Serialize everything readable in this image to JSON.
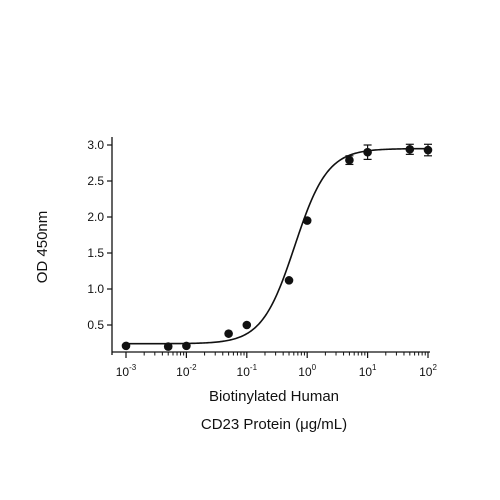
{
  "chart_data": {
    "type": "scatter",
    "title": "",
    "xlabel_lines": [
      "Biotinylated Human",
      "CD23 Protein (μg/mL)"
    ],
    "ylabel": "OD 450nm",
    "x_scale": "log",
    "xlim": [
      0.001,
      100
    ],
    "ylim": [
      0.2,
      3.1
    ],
    "y_ticks": [
      {
        "value": 0.5,
        "label": "0.5"
      },
      {
        "value": 1.0,
        "label": "1.0"
      },
      {
        "value": 1.5,
        "label": "1.5"
      },
      {
        "value": 2.0,
        "label": "2.0"
      },
      {
        "value": 2.5,
        "label": "2.5"
      },
      {
        "value": 3.0,
        "label": "3.0"
      }
    ],
    "x_ticks": [
      {
        "value": 0.001,
        "base": "10",
        "exp": "-3"
      },
      {
        "value": 0.01,
        "base": "10",
        "exp": "-2"
      },
      {
        "value": 0.1,
        "base": "10",
        "exp": "-1"
      },
      {
        "value": 1,
        "base": "10",
        "exp": "0"
      },
      {
        "value": 10,
        "base": "10",
        "exp": "1"
      },
      {
        "value": 100,
        "base": "10",
        "exp": "2"
      }
    ],
    "grid": false,
    "legend": "none",
    "points": [
      {
        "x": 0.001,
        "y": 0.21,
        "err": 0
      },
      {
        "x": 0.005,
        "y": 0.2,
        "err": 0
      },
      {
        "x": 0.01,
        "y": 0.21,
        "err": 0
      },
      {
        "x": 0.05,
        "y": 0.38,
        "err": 0
      },
      {
        "x": 0.1,
        "y": 0.5,
        "err": 0
      },
      {
        "x": 0.5,
        "y": 1.12,
        "err": 0
      },
      {
        "x": 1,
        "y": 1.95,
        "err": 0
      },
      {
        "x": 5,
        "y": 2.79,
        "err": 0.06
      },
      {
        "x": 10,
        "y": 2.9,
        "err": 0.1
      },
      {
        "x": 50,
        "y": 2.94,
        "err": 0.07
      },
      {
        "x": 100,
        "y": 2.93,
        "err": 0.08
      }
    ],
    "fit": {
      "model": "4PL",
      "bottom": 0.24,
      "top": 2.95,
      "ec50": 0.62,
      "hill": 1.6
    },
    "colors": {
      "marker": "#111111",
      "axis": "#111111",
      "curve": "#111111"
    }
  }
}
